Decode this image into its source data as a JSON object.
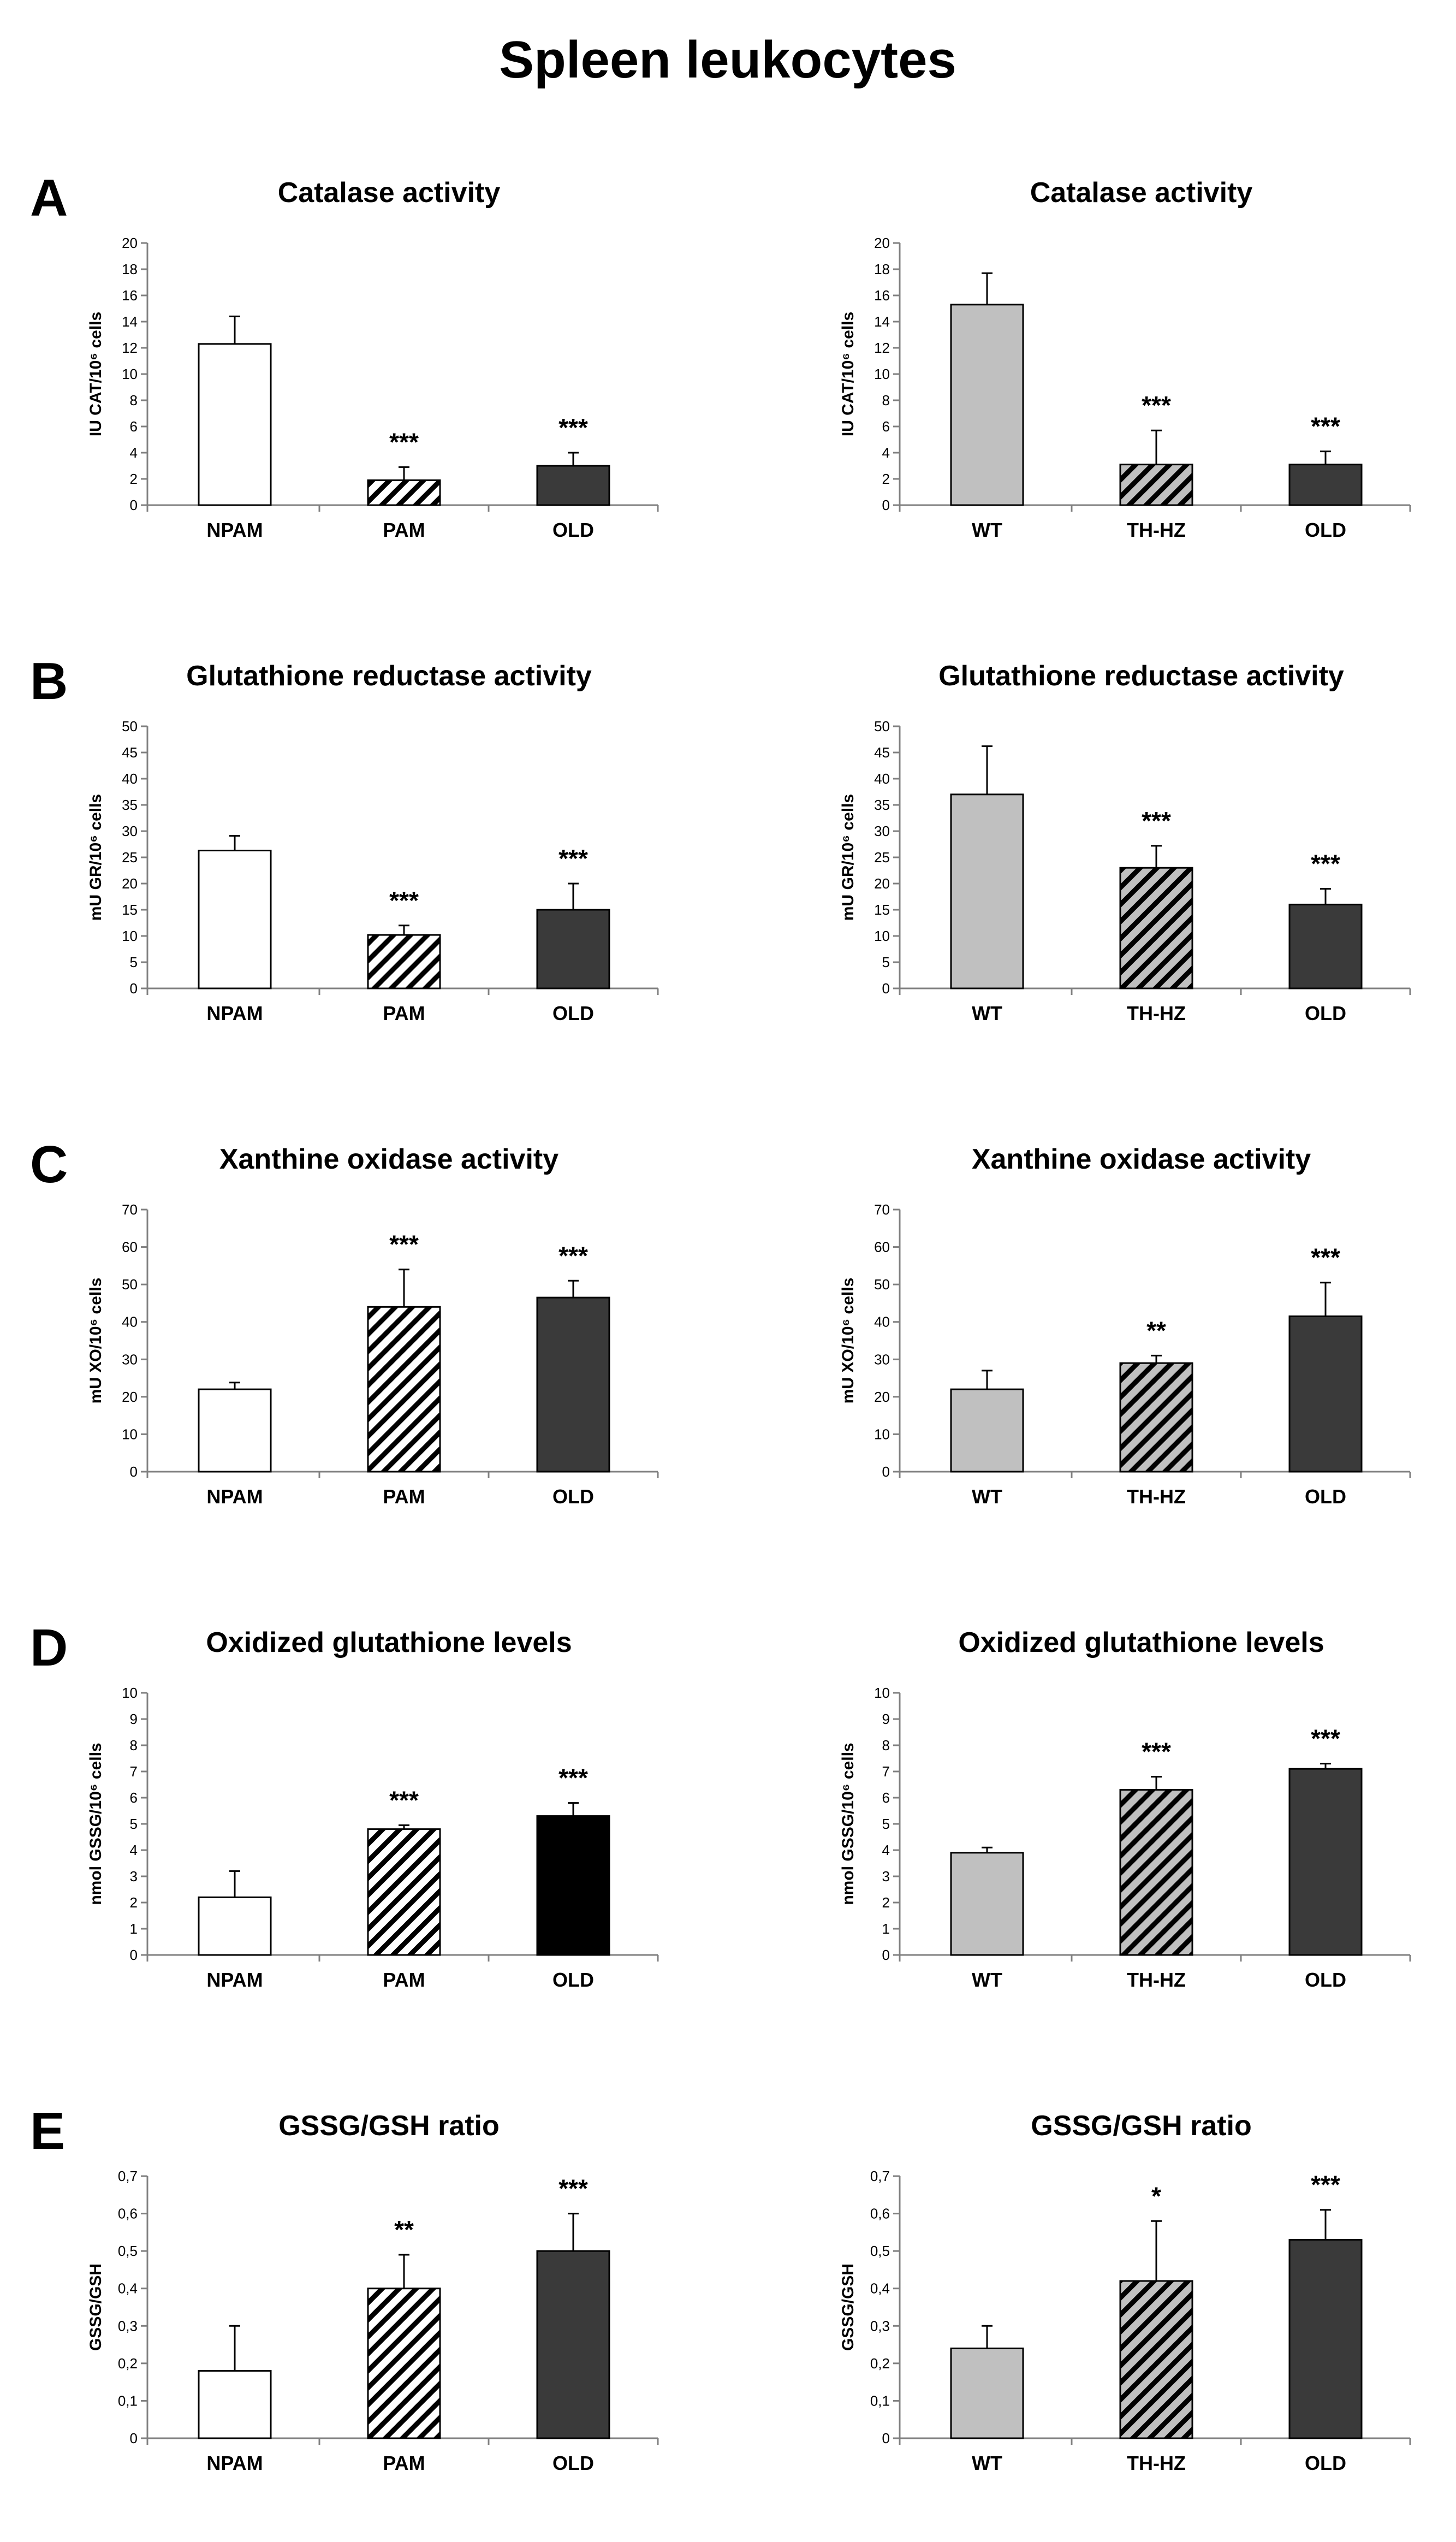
{
  "figure_title": "Spleen leukocytes",
  "colors": {
    "white": "#ffffff",
    "light_gray": "#c0c0c0",
    "dark_gray": "#3a3a3a",
    "black": "#000000",
    "hatch_line": "#000000"
  },
  "chart_data": [
    {
      "panel": "A",
      "type": "bar",
      "title": "Catalase activity",
      "ylabel": "IU CAT/10⁶ cells",
      "xlabel": "",
      "ylim": [
        0,
        20
      ],
      "yticks": [
        "0",
        "2",
        "4",
        "6",
        "8",
        "10",
        "12",
        "14",
        "16",
        "18",
        "20"
      ],
      "categories": [
        "NPAM",
        "PAM",
        "OLD"
      ],
      "values": [
        12.3,
        1.9,
        3.0
      ],
      "errors": [
        2.1,
        1.0,
        1.0
      ],
      "fills": [
        "white",
        "hatch_white",
        "dark"
      ],
      "significance": [
        "",
        "***",
        "***"
      ]
    },
    {
      "panel": "",
      "type": "bar",
      "title": "Catalase activity",
      "ylabel": "IU CAT/10⁶ cells",
      "xlabel": "",
      "ylim": [
        0,
        20
      ],
      "yticks": [
        "0",
        "2",
        "4",
        "6",
        "8",
        "10",
        "12",
        "14",
        "16",
        "18",
        "20"
      ],
      "categories": [
        "WT",
        "TH-HZ",
        "OLD"
      ],
      "values": [
        15.3,
        3.1,
        3.1
      ],
      "errors": [
        2.4,
        2.6,
        1.0
      ],
      "fills": [
        "light",
        "hatch_gray",
        "dark"
      ],
      "significance": [
        "",
        "***",
        "***"
      ]
    },
    {
      "panel": "B",
      "type": "bar",
      "title": "Glutathione reductase activity",
      "ylabel": "mU GR/10⁶ cells",
      "xlabel": "",
      "ylim": [
        0,
        50
      ],
      "yticks": [
        "0",
        "5",
        "10",
        "15",
        "20",
        "25",
        "30",
        "35",
        "40",
        "45",
        "50"
      ],
      "categories": [
        "NPAM",
        "PAM",
        "OLD"
      ],
      "values": [
        26.3,
        10.2,
        15.0
      ],
      "errors": [
        2.8,
        1.8,
        5.0
      ],
      "fills": [
        "white",
        "hatch_white",
        "dark"
      ],
      "significance": [
        "",
        "***",
        "***"
      ]
    },
    {
      "panel": "",
      "type": "bar",
      "title": "Glutathione reductase activity",
      "ylabel": "mU GR/10⁶ cells",
      "xlabel": "",
      "ylim": [
        0,
        50
      ],
      "yticks": [
        "0",
        "5",
        "10",
        "15",
        "20",
        "25",
        "30",
        "35",
        "40",
        "45",
        "50"
      ],
      "categories": [
        "WT",
        "TH-HZ",
        "OLD"
      ],
      "values": [
        37.0,
        23.0,
        16.0
      ],
      "errors": [
        9.2,
        4.2,
        3.0
      ],
      "fills": [
        "light",
        "hatch_gray",
        "dark"
      ],
      "significance": [
        "",
        "***",
        "***"
      ]
    },
    {
      "panel": "C",
      "type": "bar",
      "title": "Xanthine oxidase activity",
      "ylabel": "mU XO/10⁶ cells",
      "xlabel": "",
      "ylim": [
        0,
        70
      ],
      "yticks": [
        "0",
        "10",
        "20",
        "30",
        "40",
        "50",
        "60",
        "70"
      ],
      "categories": [
        "NPAM",
        "PAM",
        "OLD"
      ],
      "values": [
        22.0,
        44.0,
        46.5
      ],
      "errors": [
        1.8,
        10.0,
        4.5
      ],
      "fills": [
        "white",
        "hatch_white",
        "dark"
      ],
      "significance": [
        "",
        "***",
        "***"
      ]
    },
    {
      "panel": "",
      "type": "bar",
      "title": "Xanthine oxidase activity",
      "ylabel": "mU XO/10⁶ cells",
      "xlabel": "",
      "ylim": [
        0,
        70
      ],
      "yticks": [
        "0",
        "10",
        "20",
        "30",
        "40",
        "50",
        "60",
        "70"
      ],
      "categories": [
        "WT",
        "TH-HZ",
        "OLD"
      ],
      "values": [
        22.0,
        29.0,
        41.5
      ],
      "errors": [
        5.0,
        2.0,
        9.0
      ],
      "fills": [
        "light",
        "hatch_gray",
        "dark"
      ],
      "significance": [
        "",
        "**",
        "***"
      ]
    },
    {
      "panel": "D",
      "type": "bar",
      "title": "Oxidized glutathione levels",
      "ylabel": "nmol GSSG/10⁶ cells",
      "xlabel": "",
      "ylim": [
        0,
        10
      ],
      "yticks": [
        "0",
        "1",
        "2",
        "3",
        "4",
        "5",
        "6",
        "7",
        "8",
        "9",
        "10"
      ],
      "categories": [
        "NPAM",
        "PAM",
        "OLD"
      ],
      "values": [
        2.2,
        4.8,
        5.3
      ],
      "errors": [
        1.0,
        0.15,
        0.5
      ],
      "fills": [
        "white",
        "hatch_white",
        "black"
      ],
      "significance": [
        "",
        "***",
        "***"
      ]
    },
    {
      "panel": "",
      "type": "bar",
      "title": "Oxidized glutathione levels",
      "ylabel": "nmol GSSG/10⁶ cells",
      "xlabel": "",
      "ylim": [
        0,
        10
      ],
      "yticks": [
        "0",
        "1",
        "2",
        "3",
        "4",
        "5",
        "6",
        "7",
        "8",
        "9",
        "10"
      ],
      "categories": [
        "WT",
        "TH-HZ",
        "OLD"
      ],
      "values": [
        3.9,
        6.3,
        7.1
      ],
      "errors": [
        0.2,
        0.5,
        0.2
      ],
      "fills": [
        "light",
        "hatch_gray",
        "dark"
      ],
      "significance": [
        "",
        "***",
        "***"
      ]
    },
    {
      "panel": "E",
      "type": "bar",
      "title": "GSSG/GSH ratio",
      "ylabel": "GSSG/GSH",
      "xlabel": "",
      "ylim": [
        0,
        0.7
      ],
      "yticks": [
        "0",
        "0,1",
        "0,2",
        "0,3",
        "0,4",
        "0,5",
        "0,6",
        "0,7"
      ],
      "categories": [
        "NPAM",
        "PAM",
        "OLD"
      ],
      "values": [
        0.18,
        0.4,
        0.5
      ],
      "errors": [
        0.12,
        0.09,
        0.1
      ],
      "fills": [
        "white",
        "hatch_white",
        "dark"
      ],
      "significance": [
        "",
        "**",
        "***"
      ]
    },
    {
      "panel": "",
      "type": "bar",
      "title": "GSSG/GSH ratio",
      "ylabel": "GSSG/GSH",
      "xlabel": "",
      "ylim": [
        0,
        0.7
      ],
      "yticks": [
        "0",
        "0,1",
        "0,2",
        "0,3",
        "0,4",
        "0,5",
        "0,6",
        "0,7"
      ],
      "categories": [
        "WT",
        "TH-HZ",
        "OLD"
      ],
      "values": [
        0.24,
        0.42,
        0.53
      ],
      "errors": [
        0.06,
        0.16,
        0.08
      ],
      "fills": [
        "light",
        "hatch_gray",
        "dark"
      ],
      "significance": [
        "",
        "*",
        "***"
      ]
    }
  ]
}
